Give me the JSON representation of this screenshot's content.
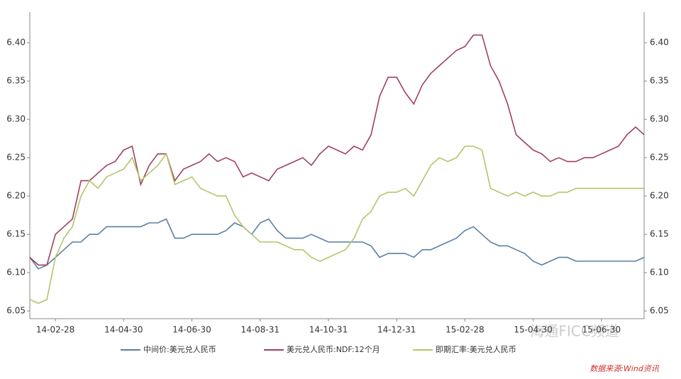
{
  "chart_data": {
    "type": "line",
    "categories": [
      null,
      null,
      null,
      "14-02-28",
      null,
      null,
      null,
      null,
      null,
      null,
      null,
      "14-04-30",
      null,
      null,
      null,
      null,
      null,
      null,
      null,
      "14-06-30",
      null,
      null,
      null,
      null,
      null,
      null,
      null,
      "14-08-31",
      null,
      null,
      null,
      null,
      null,
      null,
      null,
      "14-10-31",
      null,
      null,
      null,
      null,
      null,
      null,
      null,
      "14-12-31",
      null,
      null,
      null,
      null,
      null,
      null,
      null,
      "15-02-28",
      null,
      null,
      null,
      null,
      null,
      null,
      null,
      "15-04-30",
      null,
      null,
      null,
      null,
      null,
      null,
      null,
      "15-06-30",
      null,
      null,
      null,
      null,
      null
    ],
    "series": [
      {
        "name": "中间价:美元兑人民币",
        "color": "#5b7fa6",
        "values": [
          6.12,
          6.105,
          6.11,
          6.12,
          6.13,
          6.14,
          6.14,
          6.15,
          6.15,
          6.16,
          6.16,
          6.16,
          6.16,
          6.16,
          6.165,
          6.165,
          6.17,
          6.145,
          6.145,
          6.15,
          6.15,
          6.15,
          6.15,
          6.155,
          6.165,
          6.16,
          6.15,
          6.165,
          6.17,
          6.155,
          6.145,
          6.145,
          6.145,
          6.15,
          6.145,
          6.14,
          6.14,
          6.14,
          6.14,
          6.14,
          6.135,
          6.12,
          6.125,
          6.125,
          6.125,
          6.12,
          6.13,
          6.13,
          6.135,
          6.14,
          6.145,
          6.155,
          6.16,
          6.15,
          6.14,
          6.135,
          6.135,
          6.13,
          6.125,
          6.115,
          6.11,
          6.115,
          6.12,
          6.12,
          6.115,
          6.115,
          6.115,
          6.115,
          6.115,
          6.115,
          6.115,
          6.115,
          6.12
        ]
      },
      {
        "name": "美元兑人民币:NDF:12个月",
        "color": "#a0415e",
        "values": [
          6.12,
          6.11,
          6.11,
          6.15,
          6.16,
          6.17,
          6.22,
          6.22,
          6.23,
          6.24,
          6.245,
          6.26,
          6.265,
          6.215,
          6.24,
          6.255,
          6.255,
          6.22,
          6.235,
          6.24,
          6.245,
          6.255,
          6.245,
          6.25,
          6.245,
          6.225,
          6.23,
          6.225,
          6.22,
          6.235,
          6.24,
          6.245,
          6.25,
          6.24,
          6.255,
          6.265,
          6.26,
          6.255,
          6.265,
          6.26,
          6.28,
          6.33,
          6.355,
          6.355,
          6.335,
          6.32,
          6.345,
          6.36,
          6.37,
          6.38,
          6.39,
          6.395,
          6.41,
          6.41,
          6.37,
          6.35,
          6.32,
          6.28,
          6.27,
          6.26,
          6.255,
          6.245,
          6.25,
          6.245,
          6.245,
          6.25,
          6.25,
          6.255,
          6.26,
          6.265,
          6.28,
          6.29,
          6.28
        ]
      },
      {
        "name": "即期汇率:美元兑人民币",
        "color": "#b5c46a",
        "values": [
          6.065,
          6.06,
          6.065,
          6.12,
          6.145,
          6.16,
          6.2,
          6.22,
          6.21,
          6.225,
          6.23,
          6.235,
          6.25,
          6.22,
          6.23,
          6.24,
          6.255,
          6.215,
          6.22,
          6.225,
          6.21,
          6.205,
          6.2,
          6.2,
          6.175,
          6.16,
          6.15,
          6.14,
          6.14,
          6.14,
          6.135,
          6.13,
          6.13,
          6.12,
          6.115,
          6.12,
          6.125,
          6.13,
          6.145,
          6.17,
          6.18,
          6.2,
          6.205,
          6.205,
          6.21,
          6.2,
          6.22,
          6.24,
          6.25,
          6.245,
          6.25,
          6.265,
          6.265,
          6.26,
          6.21,
          6.205,
          6.2,
          6.205,
          6.2,
          6.205,
          6.2,
          6.2,
          6.205,
          6.205,
          6.21,
          6.21,
          6.21,
          6.21,
          6.21,
          6.21,
          6.21,
          6.21,
          6.21
        ]
      }
    ],
    "ylim": [
      6.04,
      6.44
    ],
    "yticks": [
      {
        "value": 6.05,
        "label": "6.05"
      },
      {
        "value": 6.1,
        "label": "6.10"
      },
      {
        "value": 6.15,
        "label": "6.15"
      },
      {
        "value": 6.2,
        "label": "6.20"
      },
      {
        "value": 6.25,
        "label": "6.25"
      },
      {
        "value": 6.3,
        "label": "6.30"
      },
      {
        "value": 6.35,
        "label": "6.35"
      },
      {
        "value": 6.4,
        "label": "6.40"
      }
    ],
    "y2lim": [
      6.04,
      6.44
    ],
    "y2ticks": [
      {
        "value": 6.05,
        "label": "6.05"
      },
      {
        "value": 6.1,
        "label": "6.10"
      },
      {
        "value": 6.15,
        "label": "6.15"
      },
      {
        "value": 6.2,
        "label": "6.20"
      },
      {
        "value": 6.25,
        "label": "6.25"
      },
      {
        "value": 6.3,
        "label": "6.30"
      },
      {
        "value": 6.35,
        "label": "6.35"
      },
      {
        "value": 6.4,
        "label": "6.40"
      }
    ],
    "watermark": "海通FICC频道",
    "source": "数据来源:Wind资讯"
  }
}
